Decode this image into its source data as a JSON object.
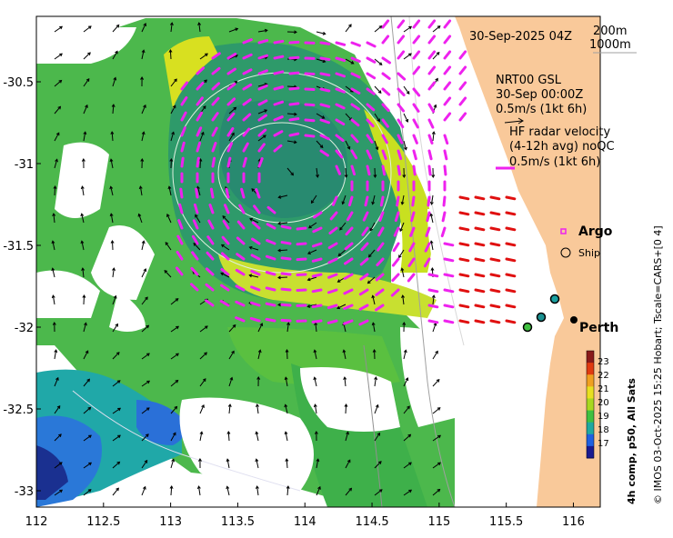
{
  "map": {
    "date_title": "30-Sep-2025 04Z",
    "depth_contours": [
      "200m",
      "1000m"
    ],
    "wind_legend": [
      "NRT00 GSL",
      "30-Sep 00:00Z",
      "0.5m/s (1kt 6h)"
    ],
    "radar_legend": [
      "HF radar velocity",
      "(4-12h avg) noQC",
      "0.5m/s (1kt 6h)"
    ],
    "argo_label": "Argo",
    "ship_label": "Ship",
    "city_label": "Perth",
    "colorbar_title": "4h comp, p50, All Sats",
    "colorbar_ticks": [
      "23",
      "22",
      "21",
      "20",
      "19",
      "18",
      "17"
    ],
    "copyright": "© IMOS 03-Oct-2025 15:25 Hobart; Tscale=CARS+[0 4]",
    "x_ticks": [
      "112",
      "112.5",
      "113",
      "113.5",
      "114",
      "114.5",
      "115",
      "115.5",
      "116"
    ],
    "y_ticks": [
      "-30.5",
      "-31",
      "-31.5",
      "-32",
      "-32.5",
      "-33"
    ],
    "x_range": [
      112,
      116.2
    ],
    "y_range": [
      -33.1,
      -30.1
    ],
    "colors": {
      "land": "#f9c99a",
      "no_data": "#ffffff",
      "radar_arrow": "#ee22ee",
      "radar_arrow_nearshore": "#e01010",
      "wind_arrow": "#000000"
    },
    "colorbar_colors": [
      "#8a1a1a",
      "#e03a10",
      "#f0a020",
      "#e8e020",
      "#a8d820",
      "#40c040",
      "#20a8a0",
      "#2060e0",
      "#1a1a90"
    ]
  }
}
